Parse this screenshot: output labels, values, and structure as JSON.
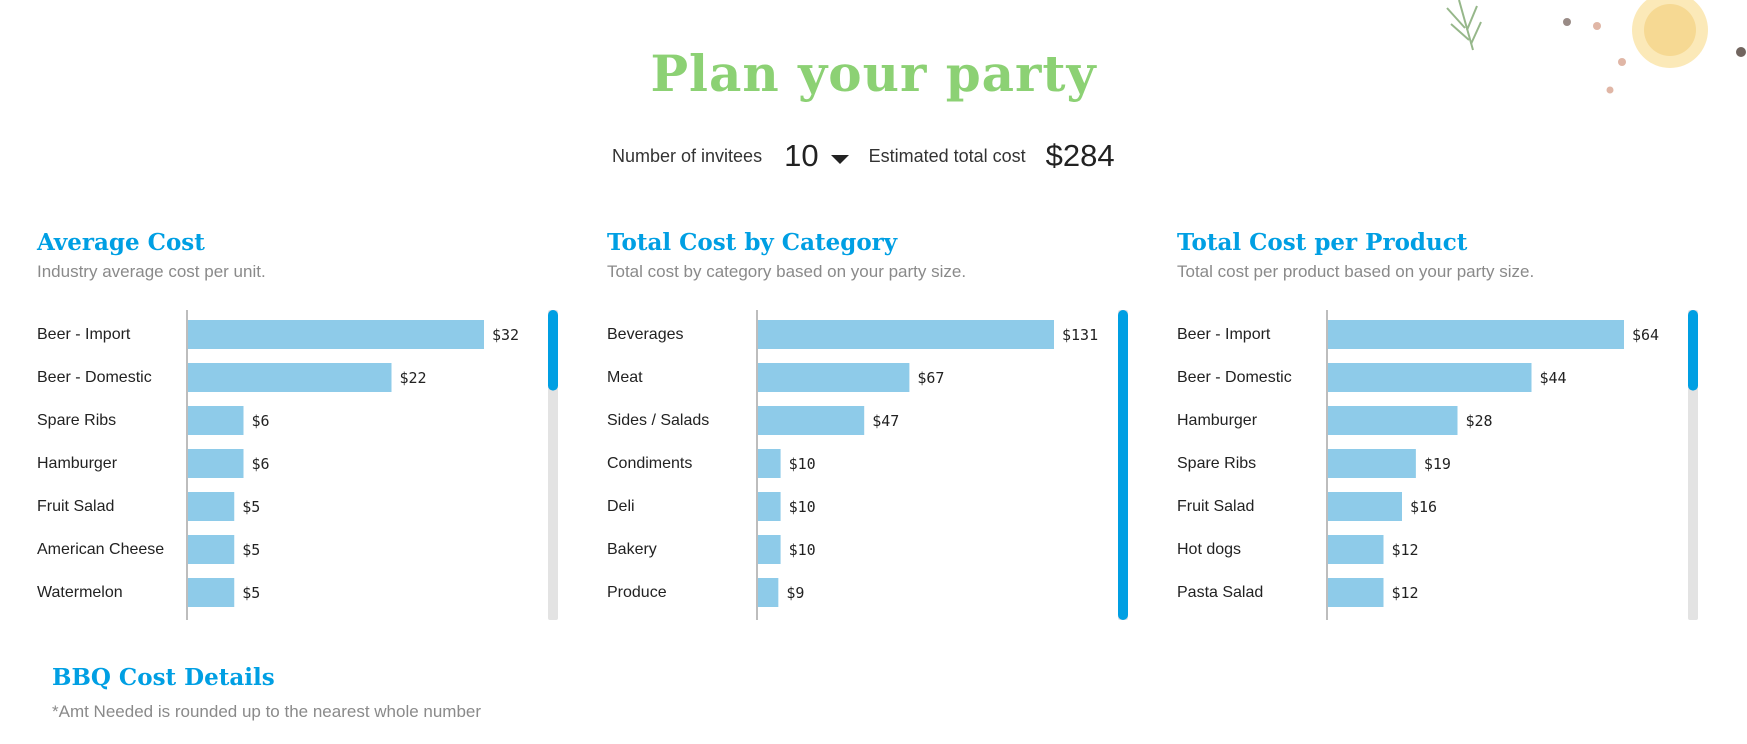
{
  "page": {
    "title": "Plan your party",
    "colors": {
      "title": "#8cd174",
      "heading": "#009fe3",
      "bar": "#8ecbe9",
      "scroll_thumb": "#009fe3",
      "scroll_track": "#e3e3e3"
    }
  },
  "controls": {
    "invitees_label": "Number of invitees",
    "invitees_value": "10",
    "total_label": "Estimated total cost",
    "total_value": "$284"
  },
  "chart_data": [
    {
      "type": "bar",
      "orientation": "horizontal",
      "title": "Average Cost",
      "subtitle": "Industry average cost per unit.",
      "categories": [
        "Beer - Import",
        "Beer - Domestic",
        "Spare Ribs",
        "Hamburger",
        "Fruit Salad",
        "American Cheese",
        "Watermelon"
      ],
      "values": [
        32,
        22,
        6,
        6,
        5,
        5,
        5
      ],
      "data_labels": [
        "$32",
        "$22",
        "$6",
        "$6",
        "$5",
        "$5",
        "$5"
      ],
      "xlim": [
        0,
        32
      ],
      "scroll_fraction": 0.26
    },
    {
      "type": "bar",
      "orientation": "horizontal",
      "title": "Total Cost by Category",
      "subtitle": "Total cost by category based on your party size.",
      "categories": [
        "Beverages",
        "Meat",
        "Sides / Salads",
        "Condiments",
        "Deli",
        "Bakery",
        "Produce"
      ],
      "values": [
        131,
        67,
        47,
        10,
        10,
        10,
        9
      ],
      "data_labels": [
        "$131",
        "$67",
        "$47",
        "$10",
        "$10",
        "$10",
        "$9"
      ],
      "xlim": [
        0,
        131
      ],
      "scroll_fraction": 1.0
    },
    {
      "type": "bar",
      "orientation": "horizontal",
      "title": "Total Cost per Product",
      "subtitle": "Total cost per product based on your party size.",
      "categories": [
        "Beer - Import",
        "Beer - Domestic",
        "Hamburger",
        "Spare Ribs",
        "Fruit Salad",
        "Hot dogs",
        "Pasta Salad"
      ],
      "values": [
        64,
        44,
        28,
        19,
        16,
        12,
        12
      ],
      "data_labels": [
        "$64",
        "$44",
        "$28",
        "$19",
        "$16",
        "$12",
        "$12"
      ],
      "xlim": [
        0,
        64
      ],
      "scroll_fraction": 0.26
    }
  ],
  "details": {
    "title": "BBQ Cost Details",
    "note": "*Amt Needed is rounded up to the nearest whole number"
  }
}
